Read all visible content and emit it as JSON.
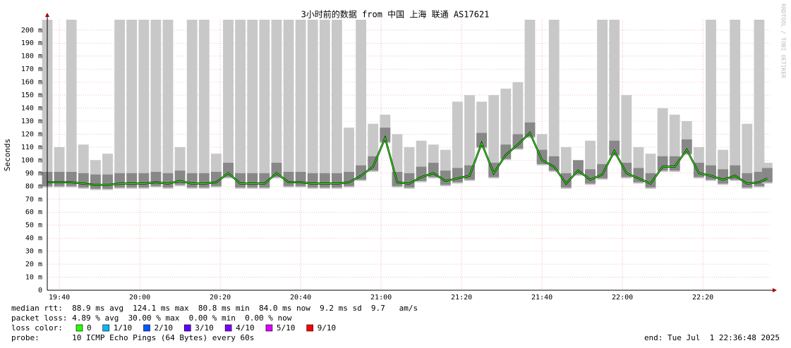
{
  "chart_data": {
    "type": "line",
    "title": "3小时前的数据 from 中国 上海 联通 AS17621",
    "ylabel": "Seconds",
    "watermark": "RRDTOOL / TOBI OETIKER",
    "x": [
      "19:37",
      "19:40",
      "19:43",
      "19:46",
      "19:49",
      "19:52",
      "19:55",
      "19:58",
      "20:01",
      "20:04",
      "20:07",
      "20:10",
      "20:13",
      "20:16",
      "20:19",
      "20:22",
      "20:25",
      "20:28",
      "20:31",
      "20:34",
      "20:37",
      "20:40",
      "20:43",
      "20:46",
      "20:49",
      "20:52",
      "20:55",
      "20:58",
      "21:01",
      "21:04",
      "21:07",
      "21:10",
      "21:13",
      "21:16",
      "21:19",
      "21:22",
      "21:25",
      "21:28",
      "21:31",
      "21:34",
      "21:37",
      "21:40",
      "21:43",
      "21:46",
      "21:49",
      "21:52",
      "21:55",
      "21:58",
      "22:01",
      "22:04",
      "22:07",
      "22:10",
      "22:13",
      "22:16",
      "22:19",
      "22:22",
      "22:25",
      "22:28",
      "22:31",
      "22:34",
      "22:36"
    ],
    "series": [
      {
        "color": "#26ff00",
        "values": [
          83,
          83,
          83,
          82,
          81,
          81,
          82,
          82,
          82,
          83,
          82,
          84,
          82,
          82,
          83,
          90,
          82,
          82,
          82,
          90,
          83,
          83,
          82,
          82,
          82,
          83,
          88,
          95,
          117,
          83,
          82,
          87,
          90,
          84,
          86,
          88,
          113,
          90,
          104,
          112,
          121,
          100,
          95,
          82,
          92,
          85,
          89,
          107,
          90,
          86,
          82,
          95,
          95,
          108,
          90,
          88,
          85,
          88,
          82,
          83,
          86
        ]
      }
    ],
    "smoke": {
      "color": "#c8c8c8",
      "values": [
        208,
        110,
        208,
        112,
        100,
        105,
        208,
        208,
        208,
        208,
        208,
        110,
        208,
        208,
        105,
        208,
        208,
        208,
        208,
        208,
        208,
        208,
        208,
        208,
        208,
        125,
        208,
        128,
        135,
        120,
        110,
        115,
        112,
        108,
        145,
        150,
        145,
        150,
        155,
        160,
        208,
        120,
        208,
        110,
        100,
        115,
        208,
        208,
        150,
        110,
        105,
        140,
        135,
        130,
        110,
        208,
        108,
        208,
        128,
        208,
        98
      ]
    },
    "ylim": [
      0,
      208
    ],
    "yticks": [
      0,
      {
        "value": 10,
        "label": "10 m"
      },
      {
        "value": 20,
        "label": "20 m"
      },
      {
        "value": 30,
        "label": "30 m"
      },
      {
        "value": 40,
        "label": "40 m"
      },
      {
        "value": 50,
        "label": "50 m"
      },
      {
        "value": 60,
        "label": "60 m"
      },
      {
        "value": 70,
        "label": "70 m"
      },
      {
        "value": 80,
        "label": "80 m"
      },
      {
        "value": 90,
        "label": "90 m"
      },
      {
        "value": 100,
        "label": "100 m"
      },
      {
        "value": 110,
        "label": "110 m"
      },
      {
        "value": 120,
        "label": "120 m"
      },
      {
        "value": 130,
        "label": "130 m"
      },
      {
        "value": 140,
        "label": "140 m"
      },
      {
        "value": 150,
        "label": "150 m"
      },
      {
        "value": 160,
        "label": "160 m"
      },
      {
        "value": 170,
        "label": "170 m"
      },
      {
        "value": 180,
        "label": "180 m"
      },
      {
        "value": 190,
        "label": "190 m"
      },
      {
        "value": 200,
        "label": "200 m"
      }
    ],
    "xlim": [
      "19:37",
      "22:37"
    ],
    "xticks": [
      "19:40",
      "20:00",
      "20:20",
      "20:40",
      "21:00",
      "21:20",
      "21:40",
      "22:00",
      "22:20"
    ],
    "grid": true,
    "footer": {
      "rtt": "median rtt:  88.9 ms avg  124.1 ms max  80.8 ms min  84.0 ms now  9.2 ms sd  9.7   am/s",
      "loss": "packet loss: 4.89 % avg  30.00 % max  0.00 % min  0.00 % now",
      "loss_label": "loss color:",
      "loss_colors": [
        {
          "label": "0",
          "color": "#26ff00"
        },
        {
          "label": "1/10",
          "color": "#00b8ff"
        },
        {
          "label": "2/10",
          "color": "#0059ff"
        },
        {
          "label": "3/10",
          "color": "#5e00ff"
        },
        {
          "label": "4/10",
          "color": "#7e00ff"
        },
        {
          "label": "5/10",
          "color": "#dd00ff"
        },
        {
          "label": "9/10",
          "color": "#ff0000"
        }
      ],
      "probe": "probe:       10 ICMP Echo Pings (64 Bytes) every 60s",
      "end": "end: Tue Jul  1 22:36:48 2025"
    }
  }
}
